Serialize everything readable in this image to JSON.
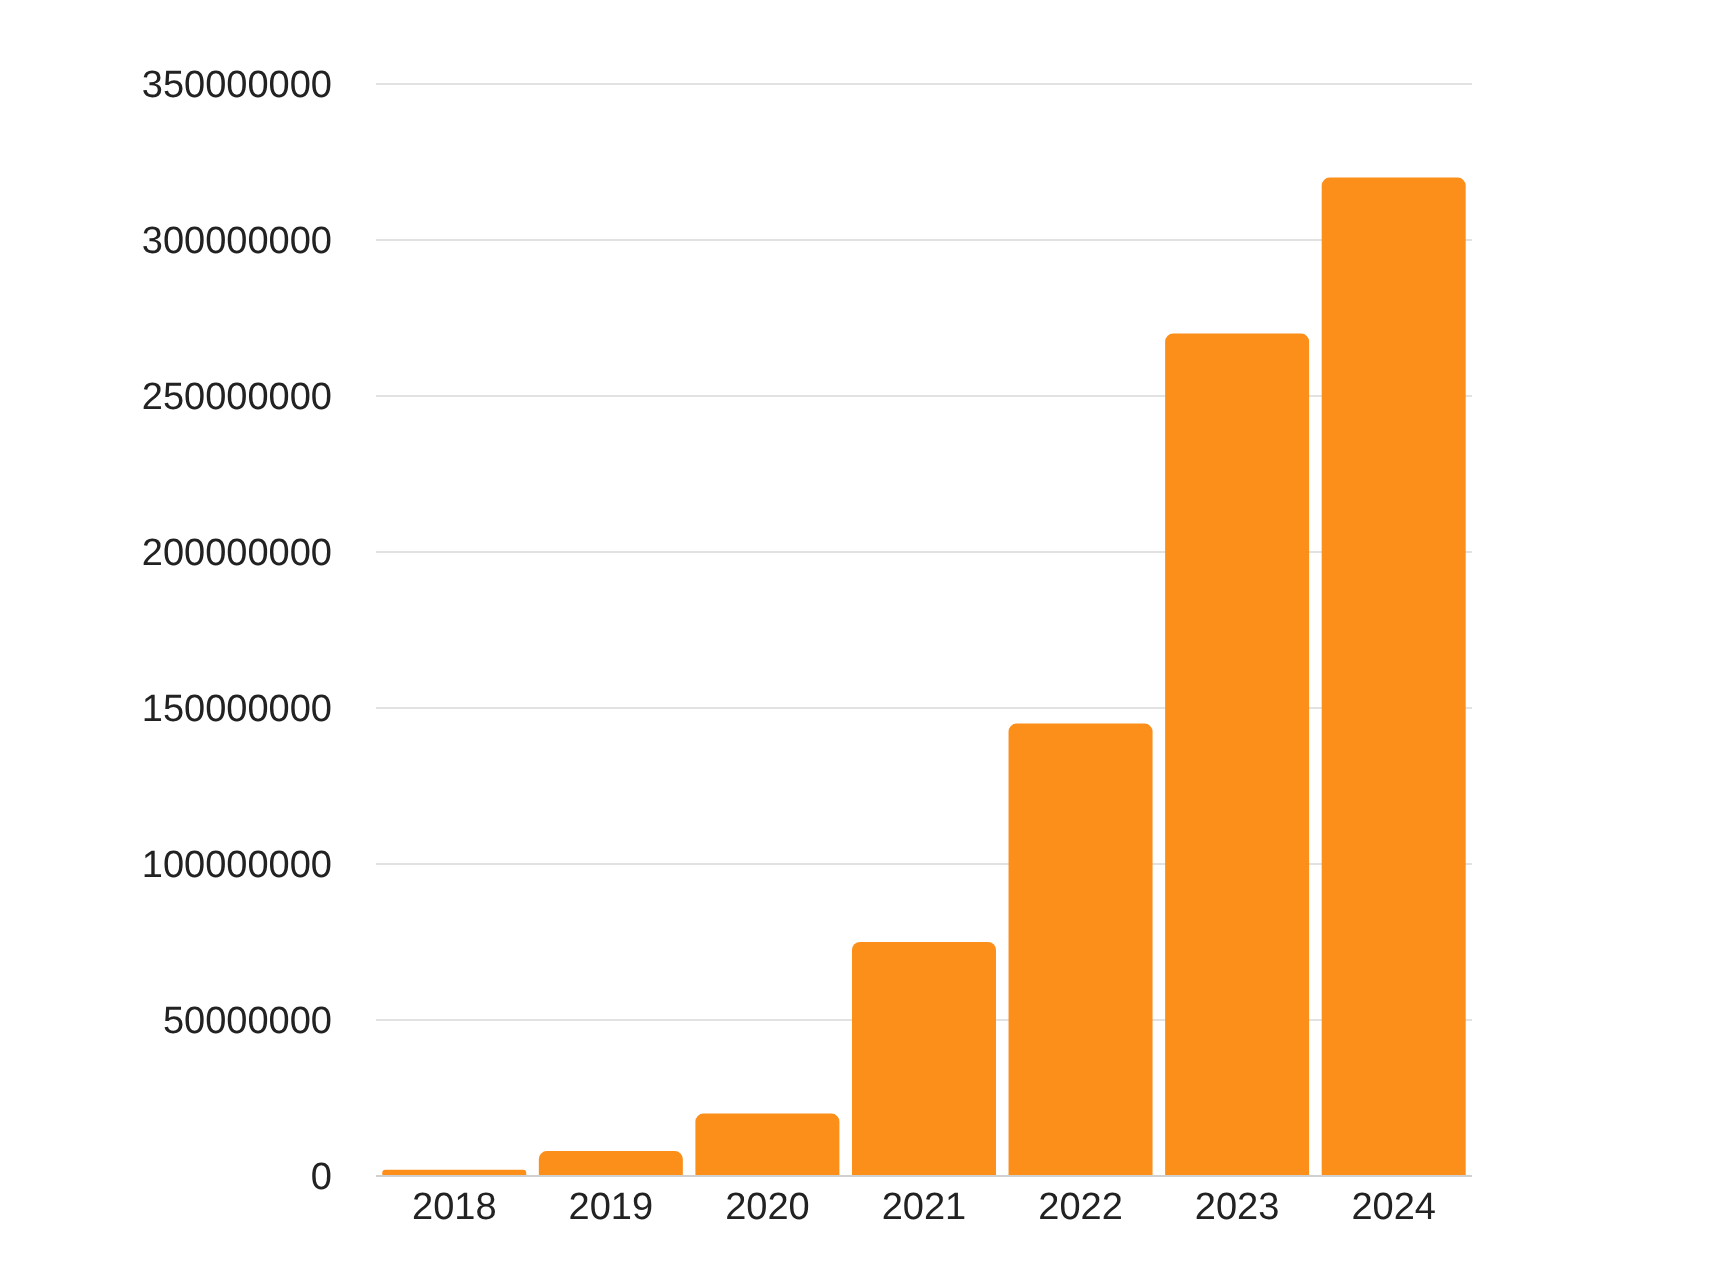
{
  "chart_data": {
    "type": "bar",
    "categories": [
      "2018",
      "2019",
      "2020",
      "2021",
      "2022",
      "2023",
      "2024"
    ],
    "values": [
      2000000,
      8000000,
      20000000,
      75000000,
      145000000,
      270000000,
      320000000
    ],
    "color": "#fb8f1a",
    "ylim": [
      0,
      350000000
    ],
    "yticks": [
      0,
      50000000,
      100000000,
      150000000,
      200000000,
      250000000,
      300000000,
      350000000
    ],
    "grid": "y"
  }
}
